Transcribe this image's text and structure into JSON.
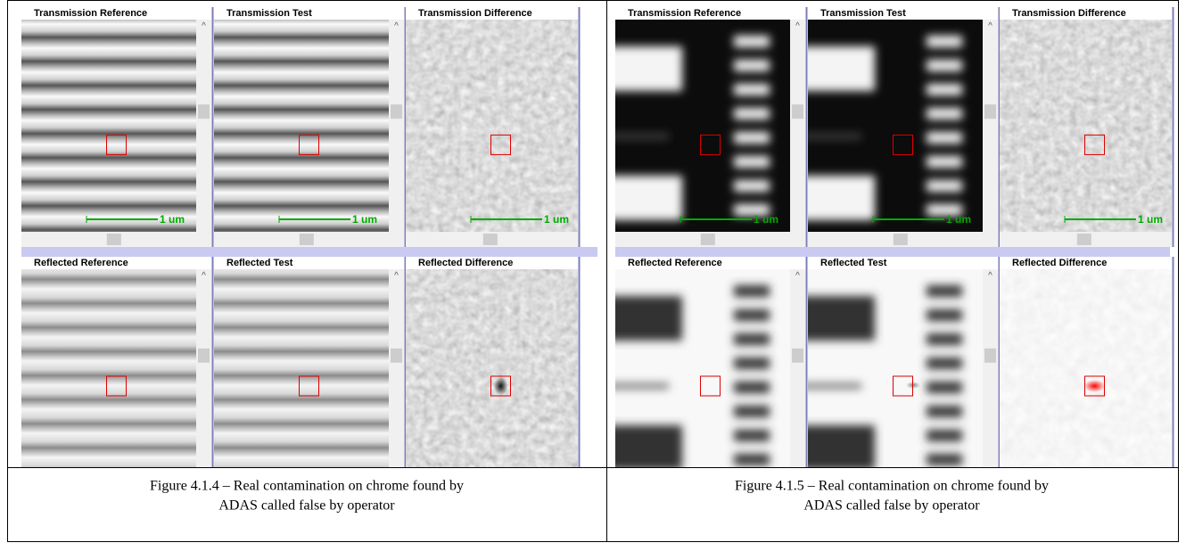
{
  "figures": [
    {
      "panels": [
        {
          "title": "Transmission  Reference",
          "scale": "1 um"
        },
        {
          "title": "Transmission Test",
          "scale": "1 um"
        },
        {
          "title": "Transmission Difference",
          "scale": "1 um"
        },
        {
          "title": "Reflected  Reference"
        },
        {
          "title": "Reflected Test"
        },
        {
          "title": "Reflected Difference"
        }
      ],
      "caption": [
        "Figure 4.1.4 – Real contamination on chrome found by",
        "ADAS called false by operator"
      ]
    },
    {
      "panels": [
        {
          "title": "Transmission  Reference",
          "scale": "1 um"
        },
        {
          "title": "Transmission Test",
          "scale": "1 um"
        },
        {
          "title": "Transmission Difference",
          "scale": "1 um"
        },
        {
          "title": "Reflected  Reference"
        },
        {
          "title": "Reflected Test"
        },
        {
          "title": "Reflected Difference"
        }
      ],
      "caption": [
        "Figure 4.1.5 – Real contamination on chrome found by",
        "ADAS called false by operator"
      ]
    }
  ]
}
